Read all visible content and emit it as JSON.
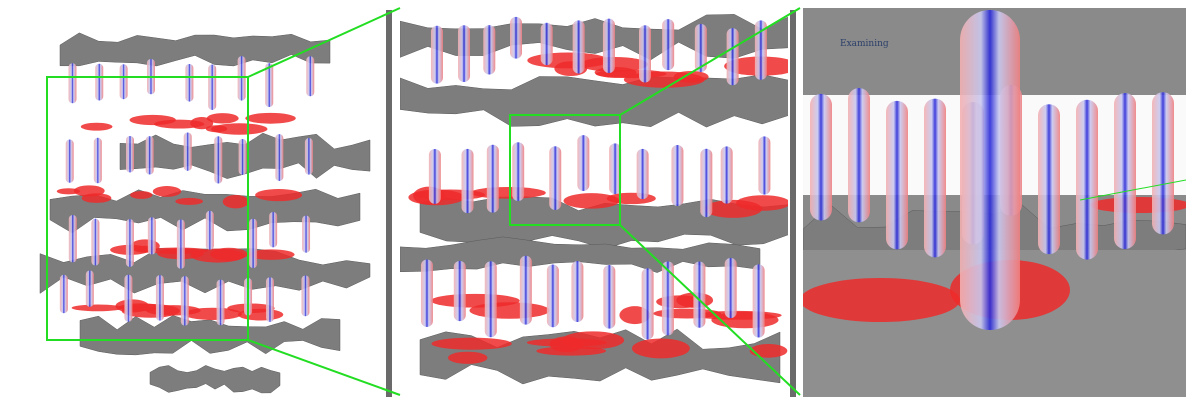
{
  "label": "Examining"
}
